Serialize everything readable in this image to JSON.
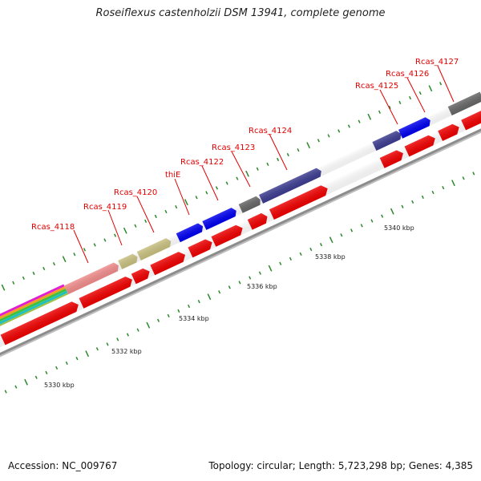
{
  "title": "Roseiflexus castenholzii DSM 13941, complete genome",
  "footer": {
    "accession": "Accession: NC_009767",
    "info": "Topology: circular; Length: 5,723,298 bp; Genes: 4,385"
  },
  "scale_labels": [
    "5330 kbp",
    "5332 kbp",
    "5334 kbp",
    "5336 kbp",
    "5338 kbp",
    "5340 kbp"
  ],
  "gene_labels": [
    "Rcas_4118",
    "Rcas_4119",
    "Rcas_4120",
    "thiE",
    "Rcas_4122",
    "Rcas_4123",
    "Rcas_4124",
    "Rcas_4125",
    "Rcas_4126",
    "Rcas_4127"
  ],
  "colors": {
    "cds": "#ee0000",
    "label": "#e00000",
    "backbone": "#888888",
    "tick": "#228822",
    "cog_olive": "#c8c080",
    "cog_pink": "#f08c8c",
    "cog_blue": "#0000ee",
    "cog_navy": "#3c3c90",
    "cog_grey": "#666666"
  }
}
